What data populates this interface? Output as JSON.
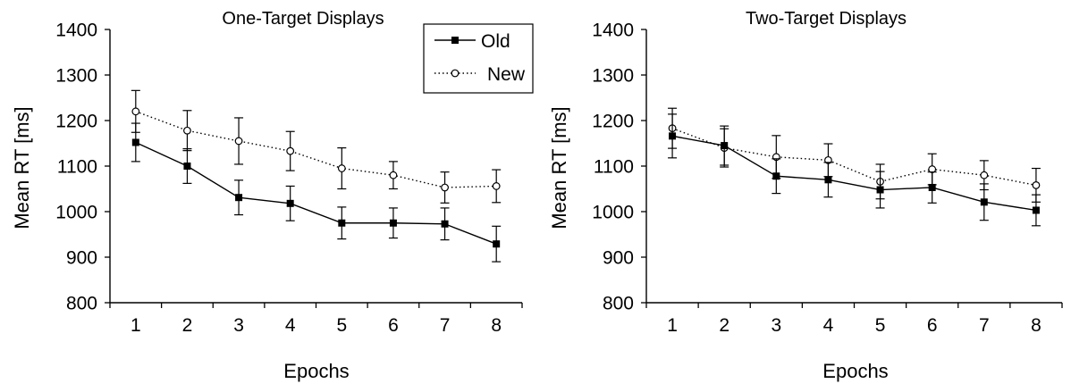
{
  "chart_data": [
    {
      "type": "line",
      "title": "One-Target Displays",
      "xlabel": "Epochs",
      "ylabel": "Mean RT [ms]",
      "x": [
        1,
        2,
        3,
        4,
        5,
        6,
        7,
        8
      ],
      "ylim": [
        800,
        1400
      ],
      "yticks": [
        800,
        900,
        1000,
        1100,
        1200,
        1300,
        1400
      ],
      "series": [
        {
          "name": "Old",
          "values": [
            1152,
            1100,
            1031,
            1018,
            975,
            975,
            973,
            929
          ],
          "errors": [
            42,
            38,
            38,
            38,
            35,
            33,
            35,
            39
          ],
          "line_style": "solid",
          "marker": "filled-square",
          "color": "#000000"
        },
        {
          "name": "New",
          "values": [
            1220,
            1178,
            1155,
            1133,
            1095,
            1080,
            1053,
            1056
          ],
          "errors": [
            46,
            44,
            51,
            43,
            45,
            30,
            34,
            36
          ],
          "line_style": "dotted",
          "marker": "open-circle",
          "color": "#000000"
        }
      ],
      "legend": {
        "position": "top-right",
        "entries": [
          "Old",
          "New"
        ]
      },
      "grid": false
    },
    {
      "type": "line",
      "title": "Two-Target Displays",
      "xlabel": "Epochs",
      "ylabel": "Mean RT [ms]",
      "x": [
        1,
        2,
        3,
        4,
        5,
        6,
        7,
        8
      ],
      "ylim": [
        800,
        1400
      ],
      "yticks": [
        800,
        900,
        1000,
        1100,
        1200,
        1300,
        1400
      ],
      "series": [
        {
          "name": "Old",
          "values": [
            1166,
            1145,
            1078,
            1070,
            1048,
            1053,
            1021,
            1003
          ],
          "errors": [
            48,
            43,
            38,
            38,
            40,
            34,
            40,
            34
          ],
          "line_style": "solid",
          "marker": "filled-square",
          "color": "#000000"
        },
        {
          "name": "New",
          "values": [
            1183,
            1140,
            1120,
            1113,
            1066,
            1093,
            1080,
            1058
          ],
          "errors": [
            44,
            42,
            47,
            36,
            38,
            34,
            32,
            37
          ],
          "line_style": "dotted",
          "marker": "open-circle",
          "color": "#000000"
        }
      ],
      "grid": false
    }
  ]
}
